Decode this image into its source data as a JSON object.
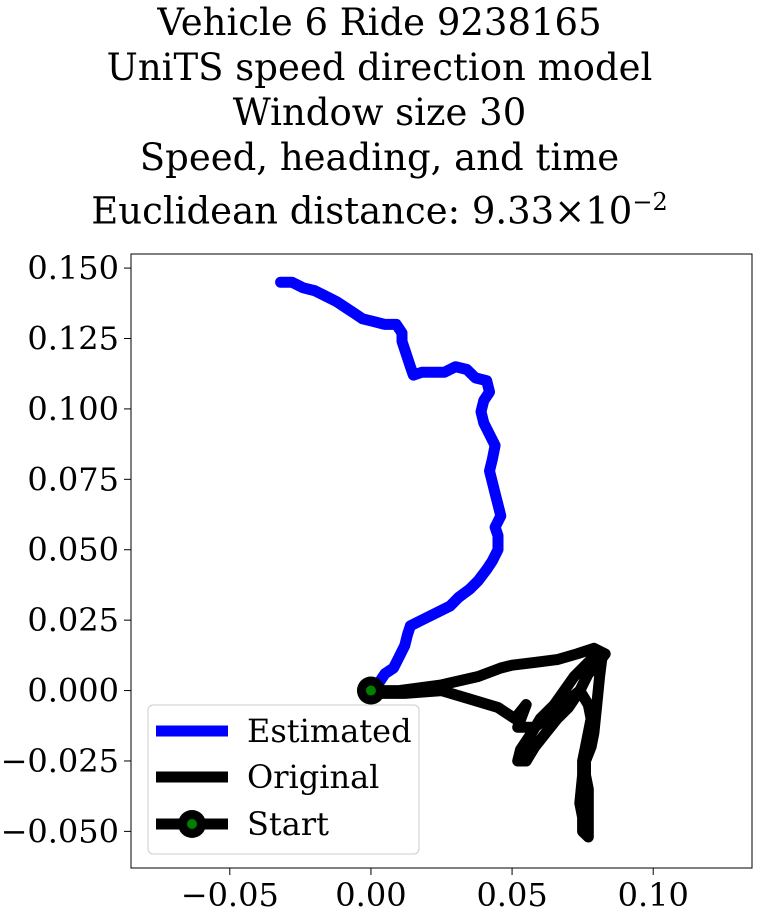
{
  "chart_data": {
    "type": "line",
    "title_lines": [
      "Vehicle 6 Ride 9238165",
      "UniTS speed direction model",
      "Window size 30",
      "Speed, heading, and time"
    ],
    "title_metric_label": "Euclidean distance: ",
    "title_metric_mantissa": "9.33",
    "title_metric_times": "×",
    "title_metric_base": "10",
    "title_metric_exponent": "−2",
    "xlabel": "",
    "ylabel": "",
    "xlim": [
      -0.085,
      0.135
    ],
    "ylim": [
      -0.063,
      0.155
    ],
    "xticks": [
      -0.05,
      0.0,
      0.05,
      0.1
    ],
    "xtick_labels": [
      "−0.05",
      "0.00",
      "0.05",
      "0.10"
    ],
    "yticks": [
      -0.05,
      -0.025,
      0.0,
      0.025,
      0.05,
      0.075,
      0.1,
      0.125,
      0.15
    ],
    "ytick_labels": [
      "−0.050",
      "−0.025",
      "0.000",
      "0.025",
      "0.050",
      "0.075",
      "0.100",
      "0.125",
      "0.150"
    ],
    "grid": false,
    "legend_position": "lower-left",
    "legend": [
      {
        "label": "Estimated",
        "color": "#0000ff",
        "marker": "none"
      },
      {
        "label": "Original",
        "color": "#000000",
        "marker": "none"
      },
      {
        "label": "Start",
        "color": "#000000",
        "marker": "circle",
        "marker_face": "#008000"
      }
    ],
    "series": [
      {
        "name": "Estimated",
        "color": "#0000ff",
        "points": [
          [
            0.0,
            0.0
          ],
          [
            0.003,
            0.003
          ],
          [
            0.005,
            0.006
          ],
          [
            0.008,
            0.008
          ],
          [
            0.01,
            0.012
          ],
          [
            0.012,
            0.016
          ],
          [
            0.013,
            0.02
          ],
          [
            0.014,
            0.023
          ],
          [
            0.018,
            0.025
          ],
          [
            0.024,
            0.028
          ],
          [
            0.028,
            0.03
          ],
          [
            0.031,
            0.033
          ],
          [
            0.035,
            0.036
          ],
          [
            0.038,
            0.039
          ],
          [
            0.041,
            0.043
          ],
          [
            0.043,
            0.046
          ],
          [
            0.045,
            0.05
          ],
          [
            0.045,
            0.055
          ],
          [
            0.044,
            0.058
          ],
          [
            0.046,
            0.062
          ],
          [
            0.045,
            0.066
          ],
          [
            0.044,
            0.07
          ],
          [
            0.043,
            0.074
          ],
          [
            0.042,
            0.078
          ],
          [
            0.043,
            0.082
          ],
          [
            0.044,
            0.087
          ],
          [
            0.042,
            0.091
          ],
          [
            0.04,
            0.095
          ],
          [
            0.039,
            0.099
          ],
          [
            0.04,
            0.103
          ],
          [
            0.042,
            0.106
          ],
          [
            0.041,
            0.11
          ],
          [
            0.037,
            0.111
          ],
          [
            0.034,
            0.114
          ],
          [
            0.03,
            0.115
          ],
          [
            0.026,
            0.113
          ],
          [
            0.022,
            0.113
          ],
          [
            0.018,
            0.113
          ],
          [
            0.015,
            0.112
          ],
          [
            0.014,
            0.115
          ],
          [
            0.013,
            0.118
          ],
          [
            0.012,
            0.121
          ],
          [
            0.011,
            0.124
          ],
          [
            0.011,
            0.127
          ],
          [
            0.009,
            0.13
          ],
          [
            0.005,
            0.13
          ],
          [
            0.001,
            0.131
          ],
          [
            -0.003,
            0.132
          ],
          [
            -0.006,
            0.134
          ],
          [
            -0.009,
            0.136
          ],
          [
            -0.012,
            0.138
          ],
          [
            -0.016,
            0.14
          ],
          [
            -0.02,
            0.142
          ],
          [
            -0.024,
            0.143
          ],
          [
            -0.028,
            0.145
          ],
          [
            -0.032,
            0.145
          ]
        ]
      },
      {
        "name": "Original",
        "color": "#000000",
        "points": [
          [
            0.0,
            0.0
          ],
          [
            0.01,
            0.0
          ],
          [
            0.025,
            0.002
          ],
          [
            0.038,
            0.005
          ],
          [
            0.046,
            0.008
          ],
          [
            0.05,
            0.009
          ],
          [
            0.058,
            0.01
          ],
          [
            0.066,
            0.011
          ],
          [
            0.073,
            0.013
          ],
          [
            0.079,
            0.015
          ],
          [
            0.083,
            0.013
          ],
          [
            0.08,
            0.009
          ],
          [
            0.077,
            0.006
          ],
          [
            0.074,
            0.0
          ],
          [
            0.07,
            -0.006
          ],
          [
            0.066,
            -0.01
          ],
          [
            0.062,
            -0.015
          ],
          [
            0.058,
            -0.02
          ],
          [
            0.055,
            -0.025
          ],
          [
            0.052,
            -0.025
          ],
          [
            0.053,
            -0.021
          ],
          [
            0.057,
            -0.015
          ],
          [
            0.06,
            -0.01
          ],
          [
            0.065,
            -0.005
          ],
          [
            0.072,
            0.005
          ],
          [
            0.079,
            0.012
          ],
          [
            0.082,
            0.013
          ],
          [
            0.081,
            0.005
          ],
          [
            0.08,
            -0.005
          ],
          [
            0.079,
            -0.015
          ],
          [
            0.078,
            -0.02
          ],
          [
            0.076,
            -0.025
          ],
          [
            0.076,
            -0.03
          ],
          [
            0.077,
            -0.035
          ],
          [
            0.077,
            -0.04
          ],
          [
            0.077,
            -0.045
          ],
          [
            0.077,
            -0.052
          ],
          [
            0.075,
            -0.05
          ],
          [
            0.075,
            -0.045
          ],
          [
            0.074,
            -0.04
          ],
          [
            0.075,
            -0.03
          ],
          [
            0.075,
            -0.025
          ],
          [
            0.076,
            -0.02
          ],
          [
            0.077,
            -0.015
          ],
          [
            0.078,
            -0.01
          ],
          [
            0.077,
            -0.005
          ],
          [
            0.074,
            0.0
          ],
          [
            0.068,
            -0.005
          ],
          [
            0.062,
            -0.01
          ],
          [
            0.058,
            -0.013
          ],
          [
            0.052,
            -0.013
          ],
          [
            0.055,
            -0.005
          ],
          [
            0.051,
            -0.01
          ],
          [
            0.045,
            -0.006
          ],
          [
            0.035,
            -0.003
          ],
          [
            0.025,
            0.0
          ],
          [
            0.012,
            -0.001
          ],
          [
            0.004,
            -0.001
          ],
          [
            0.0,
            0.0
          ]
        ]
      }
    ],
    "start_point": [
      0.0,
      0.0
    ]
  }
}
